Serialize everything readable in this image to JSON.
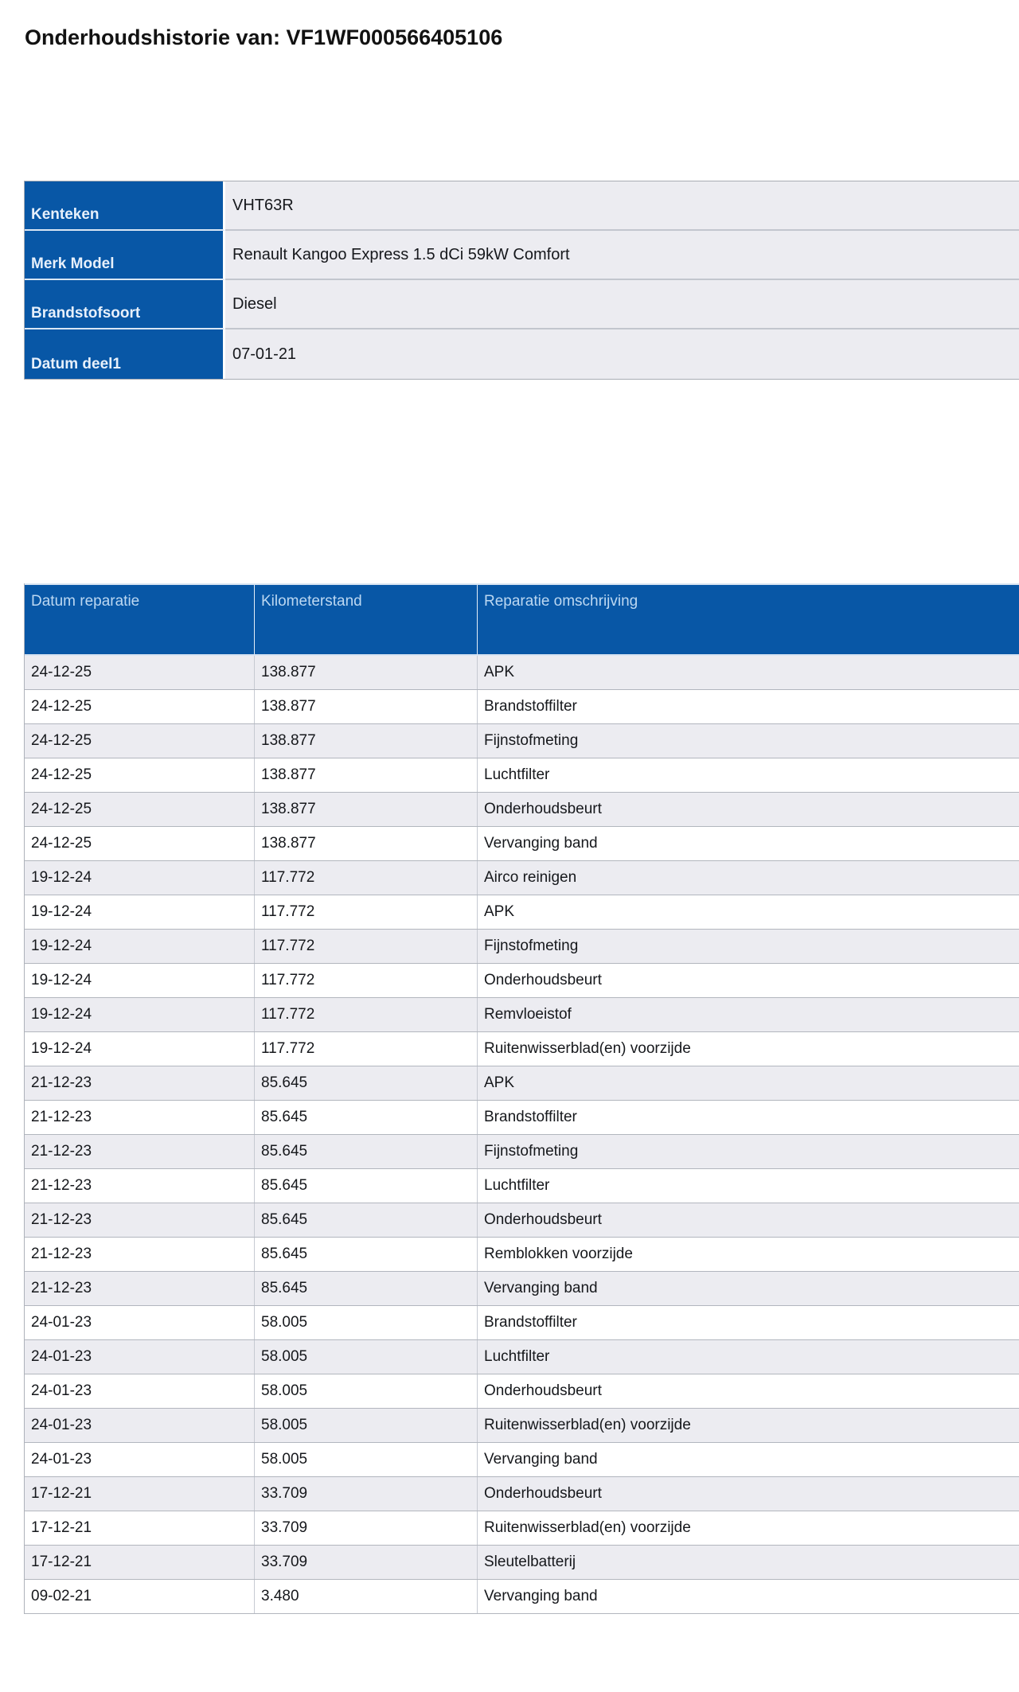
{
  "page": {
    "title": "Onderhoudshistorie van: VF1WF000566405106"
  },
  "colors": {
    "header_blue": "#0857a6",
    "row_shaded": "#ececf1",
    "row_plain": "#ffffff",
    "header_text": "#bcd8f2"
  },
  "vehicle_info": {
    "rows": [
      {
        "label": "Kenteken",
        "value": "VHT63R"
      },
      {
        "label": "Merk Model",
        "value": "Renault Kangoo Express 1.5 dCi 59kW Comfort"
      },
      {
        "label": "Brandstofsoort",
        "value": "Diesel"
      },
      {
        "label": "Datum deel1",
        "value": "07-01-21"
      }
    ]
  },
  "table": {
    "columns": [
      "Datum reparatie",
      "Kilometerstand",
      "Reparatie omschrijving"
    ],
    "rows": [
      {
        "date": "24-12-25",
        "km": "138.877",
        "desc": "APK"
      },
      {
        "date": "24-12-25",
        "km": "138.877",
        "desc": "Brandstoffilter"
      },
      {
        "date": "24-12-25",
        "km": "138.877",
        "desc": "Fijnstofmeting"
      },
      {
        "date": "24-12-25",
        "km": "138.877",
        "desc": "Luchtfilter"
      },
      {
        "date": "24-12-25",
        "km": "138.877",
        "desc": "Onderhoudsbeurt"
      },
      {
        "date": "24-12-25",
        "km": "138.877",
        "desc": "Vervanging band"
      },
      {
        "date": "19-12-24",
        "km": "117.772",
        "desc": "Airco reinigen"
      },
      {
        "date": "19-12-24",
        "km": "117.772",
        "desc": "APK"
      },
      {
        "date": "19-12-24",
        "km": "117.772",
        "desc": "Fijnstofmeting"
      },
      {
        "date": "19-12-24",
        "km": "117.772",
        "desc": "Onderhoudsbeurt"
      },
      {
        "date": "19-12-24",
        "km": "117.772",
        "desc": "Remvloeistof"
      },
      {
        "date": "19-12-24",
        "km": "117.772",
        "desc": "Ruitenwisserblad(en) voorzijde"
      },
      {
        "date": "21-12-23",
        "km": "85.645",
        "desc": "APK"
      },
      {
        "date": "21-12-23",
        "km": "85.645",
        "desc": "Brandstoffilter"
      },
      {
        "date": "21-12-23",
        "km": "85.645",
        "desc": "Fijnstofmeting"
      },
      {
        "date": "21-12-23",
        "km": "85.645",
        "desc": "Luchtfilter"
      },
      {
        "date": "21-12-23",
        "km": "85.645",
        "desc": "Onderhoudsbeurt"
      },
      {
        "date": "21-12-23",
        "km": "85.645",
        "desc": "Remblokken voorzijde"
      },
      {
        "date": "21-12-23",
        "km": "85.645",
        "desc": "Vervanging band"
      },
      {
        "date": "24-01-23",
        "km": "58.005",
        "desc": "Brandstoffilter"
      },
      {
        "date": "24-01-23",
        "km": "58.005",
        "desc": "Luchtfilter"
      },
      {
        "date": "24-01-23",
        "km": "58.005",
        "desc": "Onderhoudsbeurt"
      },
      {
        "date": "24-01-23",
        "km": "58.005",
        "desc": "Ruitenwisserblad(en) voorzijde"
      },
      {
        "date": "24-01-23",
        "km": "58.005",
        "desc": "Vervanging band"
      },
      {
        "date": "17-12-21",
        "km": "33.709",
        "desc": "Onderhoudsbeurt"
      },
      {
        "date": "17-12-21",
        "km": "33.709",
        "desc": "Ruitenwisserblad(en) voorzijde"
      },
      {
        "date": "17-12-21",
        "km": "33.709",
        "desc": "Sleutelbatterij"
      },
      {
        "date": "09-02-21",
        "km": "3.480",
        "desc": "Vervanging band"
      }
    ]
  }
}
